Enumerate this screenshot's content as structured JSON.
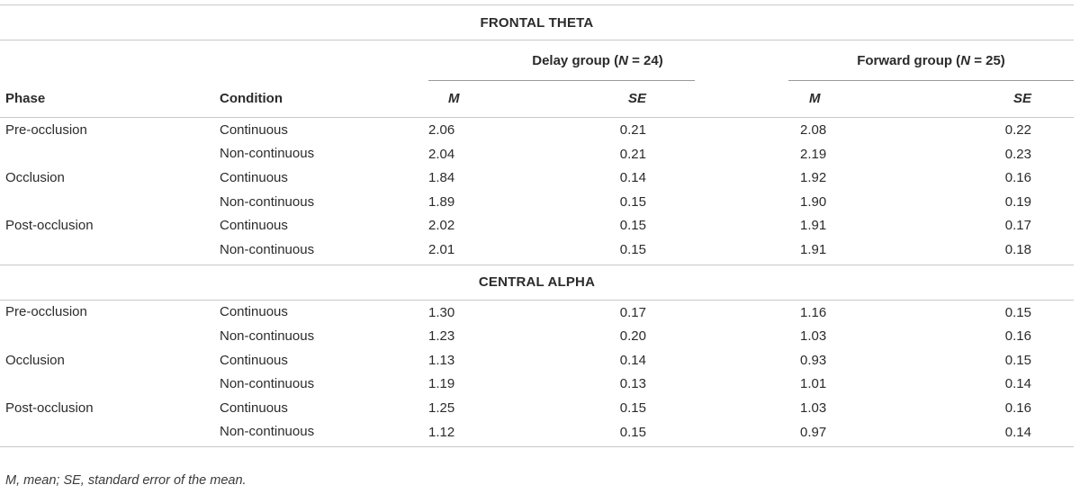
{
  "sections": [
    {
      "title": "FRONTAL THETA",
      "rows": [
        {
          "phase": "Pre-occlusion",
          "condition": "Continuous",
          "delay_m": "2.06",
          "delay_se": "0.21",
          "forward_m": "2.08",
          "forward_se": "0.22"
        },
        {
          "phase": "",
          "condition": "Non-continuous",
          "delay_m": "2.04",
          "delay_se": "0.21",
          "forward_m": "2.19",
          "forward_se": "0.23"
        },
        {
          "phase": "Occlusion",
          "condition": "Continuous",
          "delay_m": "1.84",
          "delay_se": "0.14",
          "forward_m": "1.92",
          "forward_se": "0.16"
        },
        {
          "phase": "",
          "condition": "Non-continuous",
          "delay_m": "1.89",
          "delay_se": "0.15",
          "forward_m": "1.90",
          "forward_se": "0.19"
        },
        {
          "phase": "Post-occlusion",
          "condition": "Continuous",
          "delay_m": "2.02",
          "delay_se": "0.15",
          "forward_m": "1.91",
          "forward_se": "0.17"
        },
        {
          "phase": "",
          "condition": "Non-continuous",
          "delay_m": "2.01",
          "delay_se": "0.15",
          "forward_m": "1.91",
          "forward_se": "0.18"
        }
      ]
    },
    {
      "title": "CENTRAL ALPHA",
      "rows": [
        {
          "phase": "Pre-occlusion",
          "condition": "Continuous",
          "delay_m": "1.30",
          "delay_se": "0.17",
          "forward_m": "1.16",
          "forward_se": "0.15"
        },
        {
          "phase": "",
          "condition": "Non-continuous",
          "delay_m": "1.23",
          "delay_se": "0.20",
          "forward_m": "1.03",
          "forward_se": "0.16"
        },
        {
          "phase": "Occlusion",
          "condition": "Continuous",
          "delay_m": "1.13",
          "delay_se": "0.14",
          "forward_m": "0.93",
          "forward_se": "0.15"
        },
        {
          "phase": "",
          "condition": "Non-continuous",
          "delay_m": "1.19",
          "delay_se": "0.13",
          "forward_m": "1.01",
          "forward_se": "0.14"
        },
        {
          "phase": "Post-occlusion",
          "condition": "Continuous",
          "delay_m": "1.25",
          "delay_se": "0.15",
          "forward_m": "1.03",
          "forward_se": "0.16"
        },
        {
          "phase": "",
          "condition": "Non-continuous",
          "delay_m": "1.12",
          "delay_se": "0.15",
          "forward_m": "0.97",
          "forward_se": "0.14"
        }
      ]
    }
  ],
  "header": {
    "delay_group_prefix": "Delay group (",
    "delay_group_n_symbol": "N",
    "delay_group_suffix": " = 24)",
    "forward_group_prefix": "Forward group (",
    "forward_group_n_symbol": "N",
    "forward_group_suffix": " = 25)",
    "phase": "Phase",
    "condition": "Condition",
    "m": "M",
    "se": "SE"
  },
  "footnote": "M, mean; SE, standard error of the mean."
}
